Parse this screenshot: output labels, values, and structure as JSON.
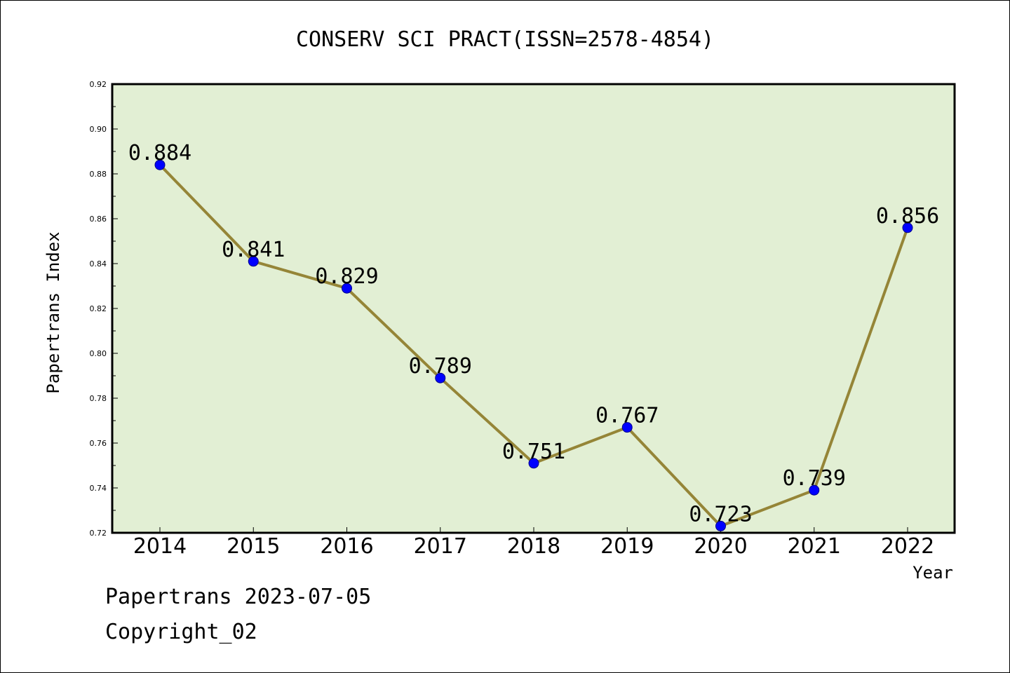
{
  "chart_data": {
    "type": "line",
    "title": "CONSERV SCI PRACT(ISSN=2578-4854)",
    "xlabel": "Year",
    "ylabel": "Papertrans Index",
    "categories": [
      "2014",
      "2015",
      "2016",
      "2017",
      "2018",
      "2019",
      "2020",
      "2021",
      "2022"
    ],
    "values": [
      0.884,
      0.841,
      0.829,
      0.789,
      0.751,
      0.767,
      0.723,
      0.739,
      0.856
    ],
    "value_labels": [
      "0.884",
      "0.841",
      "0.829",
      "0.789",
      "0.751",
      "0.767",
      "0.723",
      "0.739",
      "0.856"
    ],
    "ylim": [
      0.72,
      0.92
    ],
    "yticks": [
      "0.72",
      "0.74",
      "0.76",
      "0.78",
      "0.80",
      "0.82",
      "0.84",
      "0.86",
      "0.88",
      "0.90",
      "0.92"
    ],
    "grid": false,
    "colors": {
      "plot_background": "#e2efd4",
      "line": "#958537",
      "marker": "#0000ff"
    }
  },
  "footer": {
    "date_line": "Papertrans 2023-07-05",
    "copyright": "Copyright_02"
  }
}
